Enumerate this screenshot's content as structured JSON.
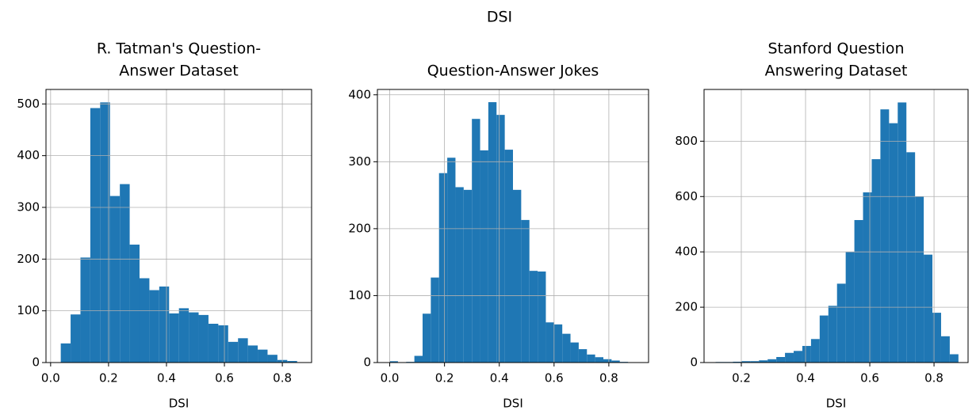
{
  "suptitle": "DSI",
  "chart_data": [
    {
      "type": "histogram",
      "title": [
        "R. Tatman's Question-",
        "Answer Dataset"
      ],
      "xlabel": "DSI",
      "color": "#1f77b4",
      "grid": true,
      "bins": [
        0.035,
        0.069,
        0.103,
        0.137,
        0.171,
        0.205,
        0.239,
        0.273,
        0.307,
        0.341,
        0.375,
        0.409,
        0.443,
        0.477,
        0.511,
        0.545,
        0.579,
        0.613,
        0.647,
        0.681,
        0.715,
        0.749,
        0.783,
        0.817,
        0.851
      ],
      "values": [
        37,
        93,
        203,
        492,
        503,
        322,
        345,
        228,
        163,
        140,
        147,
        95,
        105,
        97,
        92,
        75,
        72,
        40,
        47,
        33,
        25,
        15,
        5,
        3
      ],
      "xlim": [
        -0.016,
        0.901
      ],
      "ylim": [
        0,
        528
      ],
      "xticks": [
        {
          "value": 0,
          "label": "0.0"
        },
        0.2,
        0.4,
        0.6,
        0.8
      ],
      "yticks": [
        0,
        100,
        200,
        300,
        400,
        500
      ]
    },
    {
      "type": "histogram",
      "title": [
        "Question-Answer Jokes"
      ],
      "xlabel": "DSI",
      "color": "#1f77b4",
      "grid": true,
      "bins": [
        0,
        0.03,
        0.06,
        0.09,
        0.12,
        0.15,
        0.18,
        0.21,
        0.24,
        0.27,
        0.3,
        0.33,
        0.36,
        0.39,
        0.42,
        0.45,
        0.48,
        0.51,
        0.54,
        0.57,
        0.6,
        0.63,
        0.66,
        0.69,
        0.72,
        0.75,
        0.78,
        0.81,
        0.84,
        0.87,
        0.9
      ],
      "values": [
        2,
        0,
        1,
        10,
        73,
        127,
        283,
        306,
        262,
        258,
        364,
        317,
        389,
        370,
        318,
        258,
        213,
        137,
        136,
        60,
        57,
        43,
        30,
        20,
        12,
        8,
        5,
        3,
        1,
        0
      ],
      "xlim": [
        -0.045,
        0.945
      ],
      "ylim": [
        0,
        408
      ],
      "xticks": [
        {
          "value": 0,
          "label": "0.0"
        },
        0.2,
        0.4,
        0.6,
        0.8
      ],
      "yticks": [
        0,
        100,
        200,
        300,
        400
      ]
    },
    {
      "type": "histogram",
      "title": [
        "Stanford Question",
        "Answering Dataset"
      ],
      "xlabel": "DSI",
      "color": "#1f77b4",
      "grid": true,
      "bins": [
        0.12,
        0.147,
        0.174,
        0.201,
        0.228,
        0.255,
        0.282,
        0.309,
        0.336,
        0.363,
        0.39,
        0.417,
        0.444,
        0.471,
        0.498,
        0.525,
        0.552,
        0.579,
        0.606,
        0.633,
        0.66,
        0.687,
        0.714,
        0.741,
        0.768,
        0.795,
        0.822,
        0.849,
        0.876
      ],
      "values": [
        2,
        2,
        3,
        5,
        5,
        8,
        12,
        20,
        35,
        42,
        60,
        85,
        170,
        205,
        285,
        400,
        515,
        615,
        735,
        915,
        865,
        940,
        760,
        600,
        390,
        180,
        95,
        30
      ],
      "xlim": [
        0.084,
        0.906
      ],
      "ylim": [
        0,
        987
      ],
      "xticks": [
        0.2,
        0.4,
        0.6,
        0.8
      ],
      "yticks": [
        0,
        200,
        400,
        600,
        800
      ]
    }
  ]
}
